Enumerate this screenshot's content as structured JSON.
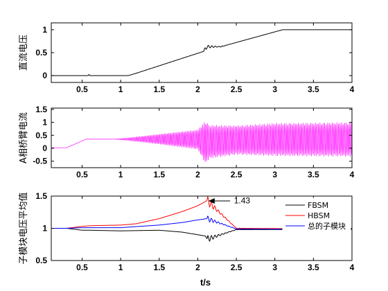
{
  "colors": {
    "axis": "#000000",
    "black": "#000000",
    "magenta": "#ff00ff",
    "red": "#ff0000",
    "blue": "#0000ff"
  },
  "chart_data": [
    {
      "type": "line",
      "ylabel": "直流电压",
      "xlim": [
        0.1,
        4.0
      ],
      "ylim": [
        -0.15,
        1.15
      ],
      "xticks": [
        0.5,
        1,
        1.5,
        2,
        2.5,
        3,
        3.5,
        4
      ],
      "xtick_labels": [
        "0.5",
        "1",
        "1.5",
        "2",
        "2.5",
        "3",
        "3.5",
        "4"
      ],
      "yticks": [
        0,
        0.5,
        1
      ],
      "ytick_labels": [
        "0",
        "0.5",
        "1"
      ],
      "series": [
        {
          "color": "#000000",
          "x": [
            0.1,
            0.58,
            0.59,
            0.6,
            1.0,
            1.1,
            1.2,
            2.08,
            2.12,
            2.3,
            3.1,
            4.0
          ],
          "y": [
            0.0,
            0.0,
            0.03,
            0.0,
            0.0,
            0.0,
            0.05,
            0.53,
            0.63,
            0.63,
            1.0,
            1.0
          ]
        }
      ]
    },
    {
      "type": "line",
      "ylabel": "A相桥臂电流",
      "xlim": [
        0.1,
        4.0
      ],
      "ylim": [
        -0.75,
        1.55
      ],
      "xticks": [
        0.5,
        1,
        1.5,
        2,
        2.5,
        3,
        3.5,
        4
      ],
      "xtick_labels": [
        "0.5",
        "1",
        "1.5",
        "2",
        "2.5",
        "3",
        "3.5",
        "4"
      ],
      "yticks": [
        -0.5,
        0,
        0.5,
        1,
        1.5
      ],
      "ytick_labels": [
        "-0.5",
        "0",
        "0.5",
        "1",
        "1.5"
      ],
      "series": [
        {
          "color": "#ff00ff",
          "x": [
            0.1,
            0.3,
            0.55,
            0.9,
            1.1,
            1.5,
            2.0,
            2.1,
            2.15,
            2.5,
            3.0,
            4.0
          ],
          "y_upper": [
            0.02,
            0.02,
            0.35,
            0.35,
            0.4,
            0.55,
            0.72,
            1.05,
            0.9,
            0.88,
            0.97,
            1.0
          ],
          "y_lower": [
            0.02,
            0.02,
            0.35,
            0.35,
            0.3,
            0.15,
            -0.05,
            -0.6,
            -0.4,
            -0.25,
            -0.3,
            -0.32
          ]
        }
      ]
    },
    {
      "type": "line",
      "ylabel": "子模块电压平均值",
      "xlabel": "t/s",
      "xlim": [
        0.1,
        4.0
      ],
      "ylim": [
        0.5,
        1.5
      ],
      "xticks": [
        0.5,
        1,
        1.5,
        2,
        2.5,
        3,
        3.5,
        4
      ],
      "xtick_labels": [
        "0.5",
        "1",
        "1.5",
        "2",
        "2.5",
        "3",
        "3.5",
        "4"
      ],
      "yticks": [
        0.5,
        1,
        1.5
      ],
      "ytick_labels": [
        "0.5",
        "1",
        "1.5"
      ],
      "legend": "top-right",
      "annotation": {
        "text": "1.43",
        "x": 2.12,
        "y": 1.43
      },
      "series": [
        {
          "name": "FBSM",
          "color": "#000000",
          "x": [
            0.1,
            0.3,
            0.5,
            0.6,
            1.0,
            1.5,
            1.8,
            2.0,
            2.1,
            2.12,
            2.5,
            4.0
          ],
          "y": [
            1.0,
            1.0,
            0.97,
            0.97,
            0.96,
            0.97,
            0.94,
            0.9,
            0.88,
            0.83,
            0.98,
            0.98
          ]
        },
        {
          "name": "HBSM",
          "color": "#ff0000",
          "x": [
            0.1,
            0.3,
            0.5,
            0.6,
            1.0,
            1.2,
            1.5,
            1.8,
            2.0,
            2.12,
            2.5,
            4.0
          ],
          "y": [
            1.0,
            1.0,
            1.03,
            1.04,
            1.05,
            1.07,
            1.15,
            1.26,
            1.35,
            1.43,
            1.0,
            0.99
          ]
        },
        {
          "name": "总的子模块",
          "color": "#0000ff",
          "x": [
            0.1,
            0.3,
            0.5,
            0.6,
            1.0,
            1.5,
            1.8,
            2.0,
            2.12,
            2.5,
            4.0
          ],
          "y": [
            1.0,
            1.0,
            1.01,
            1.01,
            1.01,
            1.05,
            1.09,
            1.13,
            1.15,
            0.99,
            0.98
          ]
        }
      ]
    }
  ]
}
